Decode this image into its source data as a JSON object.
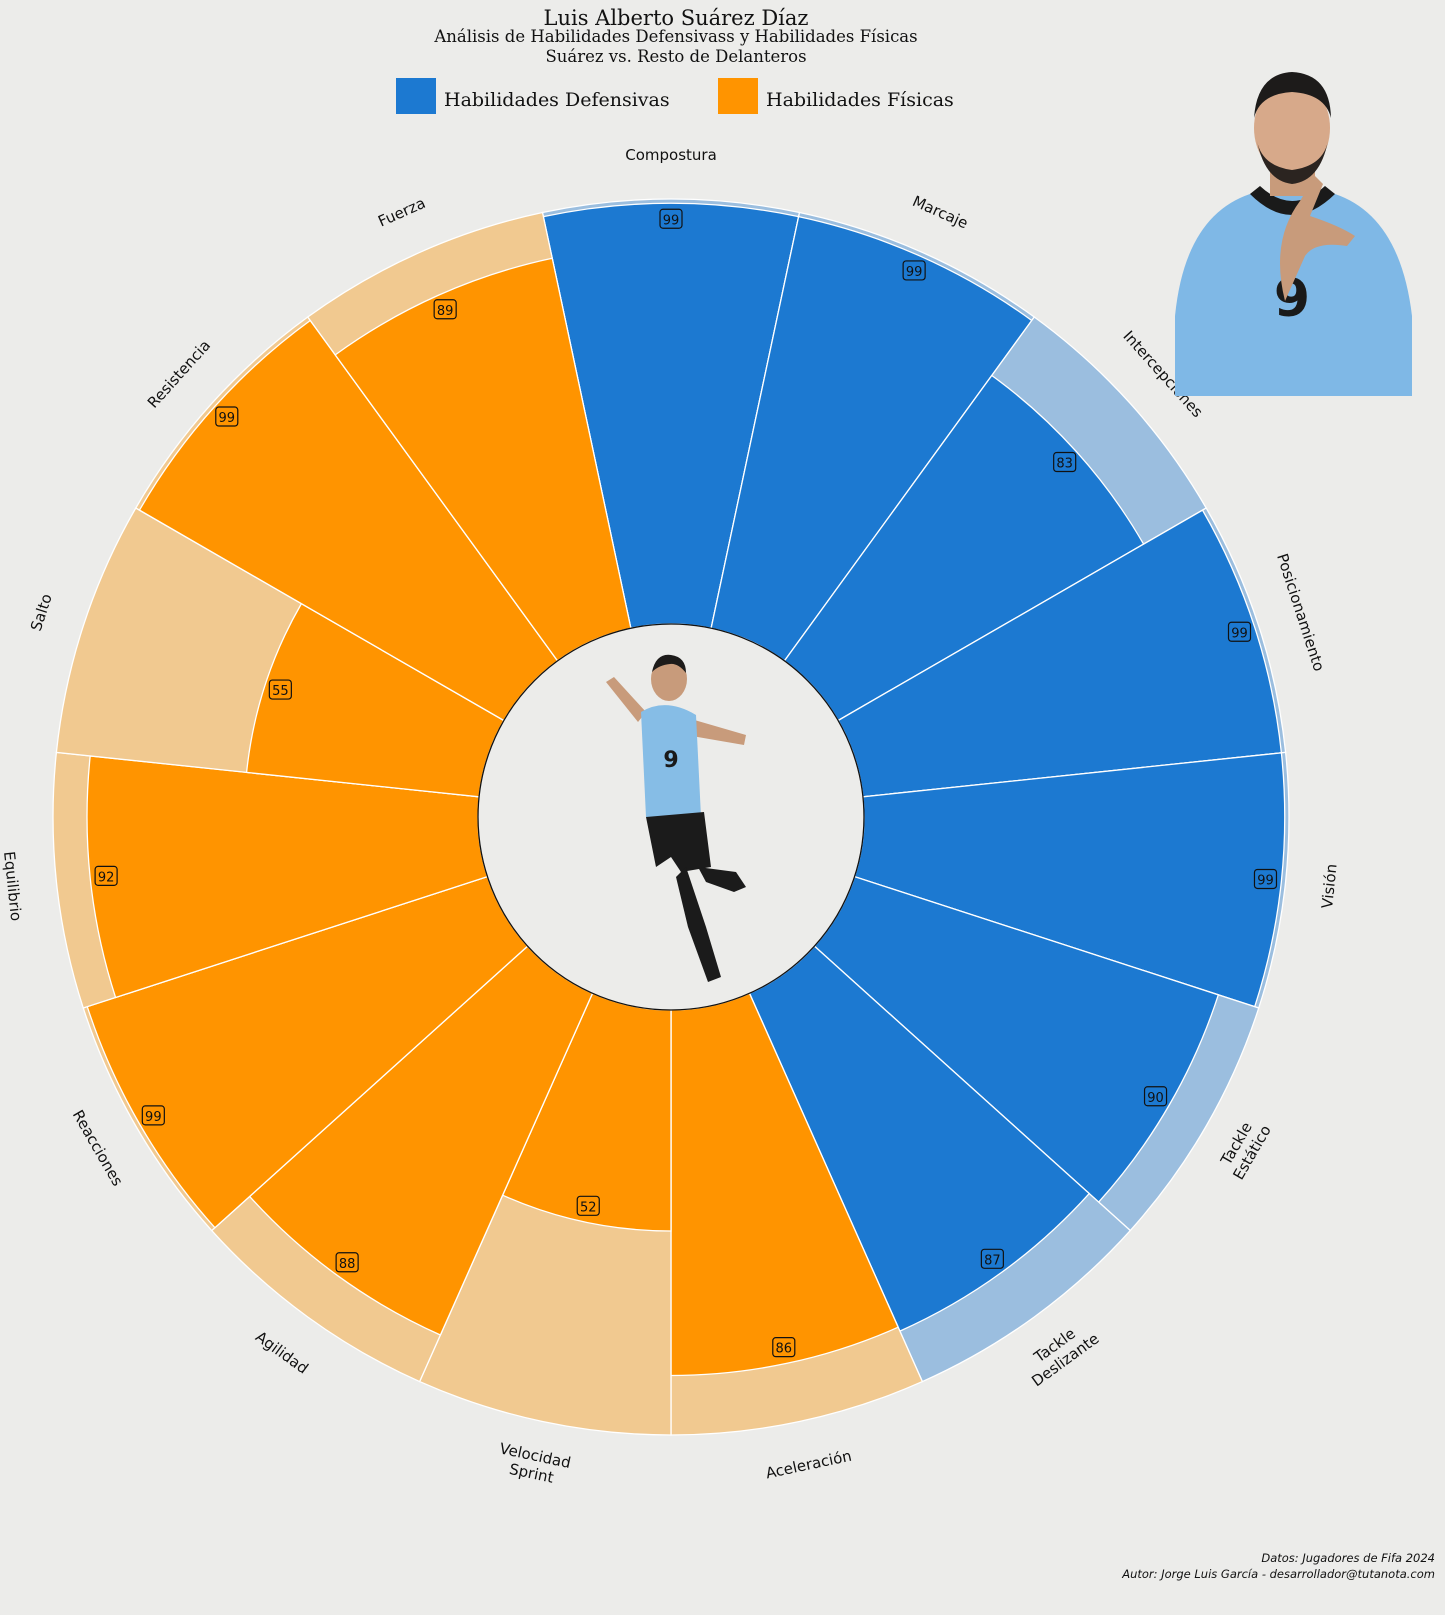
{
  "header": {
    "title": "Luis Alberto Suárez Díaz",
    "subtitle": "Análisis de Habilidades Defensivass y Habilidades Físicas",
    "comparison": "Suárez vs. Resto de Delanteros"
  },
  "legend": {
    "defensive": {
      "label": "Habilidades Defensivas",
      "color": "#1c79d1"
    },
    "physical": {
      "label": "Habilidades Físicas",
      "color": "#ff9400"
    }
  },
  "colors": {
    "defensive": "#1c79d1",
    "defensive_light": "#9bbedf",
    "physical": "#ff9400",
    "physical_light": "#f1c990",
    "background": "#ececea"
  },
  "chart_data": {
    "type": "radial-bar",
    "max": 100,
    "categories": [
      {
        "label": [
          "Compostura"
        ],
        "value": 99,
        "group": "defensive"
      },
      {
        "label": [
          "Marcaje"
        ],
        "value": 99,
        "group": "defensive"
      },
      {
        "label": [
          "Intercepciones"
        ],
        "value": 83,
        "group": "defensive"
      },
      {
        "label": [
          "Posicionamiento"
        ],
        "value": 99,
        "group": "defensive"
      },
      {
        "label": [
          "Visión"
        ],
        "value": 99,
        "group": "defensive"
      },
      {
        "label": [
          "Tackle",
          "Estático"
        ],
        "value": 90,
        "group": "defensive"
      },
      {
        "label": [
          "Tackle",
          "Deslizante"
        ],
        "value": 87,
        "group": "defensive"
      },
      {
        "label": [
          "Aceleración"
        ],
        "value": 86,
        "group": "physical"
      },
      {
        "label": [
          "Velocidad",
          "Sprint"
        ],
        "value": 52,
        "group": "physical"
      },
      {
        "label": [
          "Agilidad"
        ],
        "value": 88,
        "group": "physical"
      },
      {
        "label": [
          "Reacciones"
        ],
        "value": 99,
        "group": "physical"
      },
      {
        "label": [
          "Equilibrio"
        ],
        "value": 92,
        "group": "physical"
      },
      {
        "label": [
          "Salto"
        ],
        "value": 55,
        "group": "physical"
      },
      {
        "label": [
          "Resistencia"
        ],
        "value": 99,
        "group": "physical"
      },
      {
        "label": [
          "Fuerza"
        ],
        "value": 89,
        "group": "physical"
      }
    ]
  },
  "credits": {
    "data_source": "Datos: Jugadores de Fifa 2024",
    "author": "Autor: Jorge Luis García - desarrollador@tutanota.com"
  }
}
